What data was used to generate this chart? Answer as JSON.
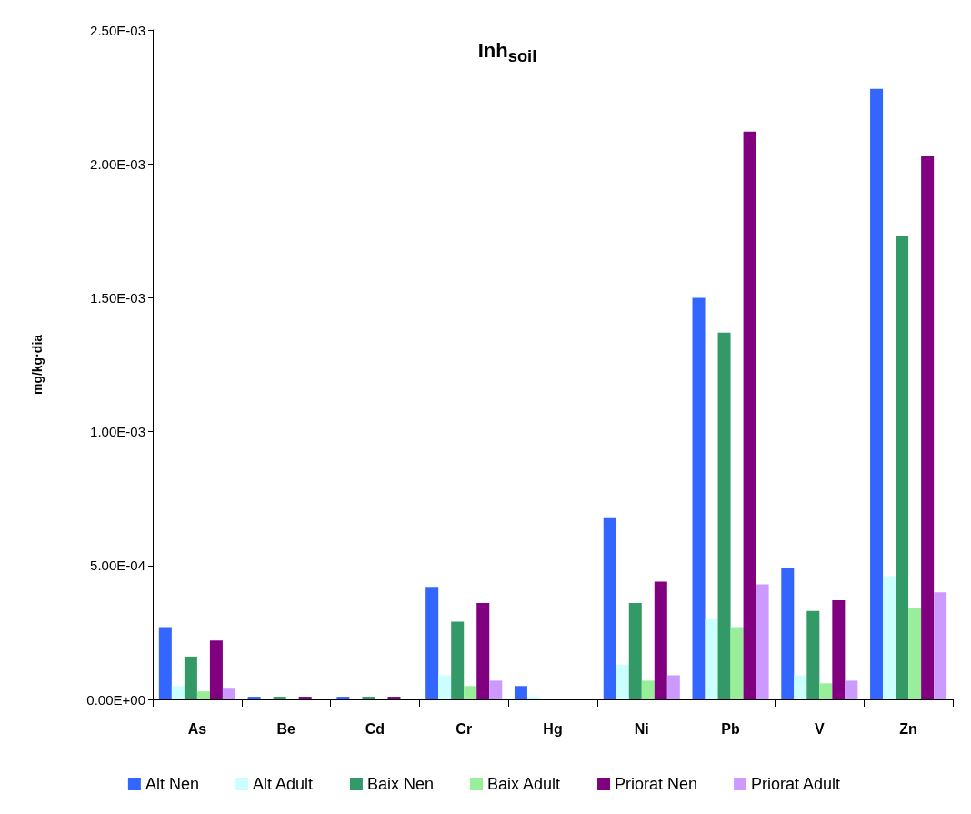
{
  "chart_data": {
    "type": "bar",
    "title": "Inh$_{soil}$",
    "ylabel": "mg/kg·dia",
    "categories": [
      "As",
      "Be",
      "Cd",
      "Cr",
      "Hg",
      "Ni",
      "Pb",
      "V",
      "Zn"
    ],
    "series": [
      {
        "name": "Alt Nen",
        "color": "#3366ff",
        "values": [
          0.00027,
          1e-05,
          1e-05,
          0.00042,
          5e-05,
          0.00068,
          0.0015,
          0.00049,
          0.00228
        ]
      },
      {
        "name": "Alt Adult",
        "color": "#ccffff",
        "values": [
          5e-05,
          0,
          0,
          9e-05,
          1e-05,
          0.00013,
          0.0003,
          9e-05,
          0.00046
        ]
      },
      {
        "name": "Baix Nen",
        "color": "#339966",
        "values": [
          0.00016,
          1e-05,
          1e-05,
          0.00029,
          0,
          0.00036,
          0.00137,
          0.00033,
          0.00173
        ]
      },
      {
        "name": "Baix Adult",
        "color": "#99ee99",
        "values": [
          3e-05,
          0,
          0,
          5e-05,
          0,
          7e-05,
          0.00027,
          6e-05,
          0.00034
        ]
      },
      {
        "name": "Priorat Nen",
        "color": "#800080",
        "values": [
          0.00022,
          1e-05,
          1e-05,
          0.00036,
          0,
          0.00044,
          0.00212,
          0.00037,
          0.00203
        ]
      },
      {
        "name": "Priorat Adult",
        "color": "#cc99ff",
        "values": [
          4e-05,
          0,
          0,
          7e-05,
          0,
          9e-05,
          0.00043,
          7e-05,
          0.0004
        ]
      }
    ],
    "ylim": [
      0,
      0.0025
    ],
    "yticks": [
      {
        "value": 0,
        "label": "0.00E+00"
      },
      {
        "value": 0.0005,
        "label": "5.00E-04"
      },
      {
        "value": 0.001,
        "label": "1.00E-03"
      },
      {
        "value": 0.0015,
        "label": "1.50E-03"
      },
      {
        "value": 0.002,
        "label": "2.00E-03"
      },
      {
        "value": 0.0025,
        "label": "2.50E-03"
      }
    ],
    "grid": false,
    "legend": "bottom"
  }
}
